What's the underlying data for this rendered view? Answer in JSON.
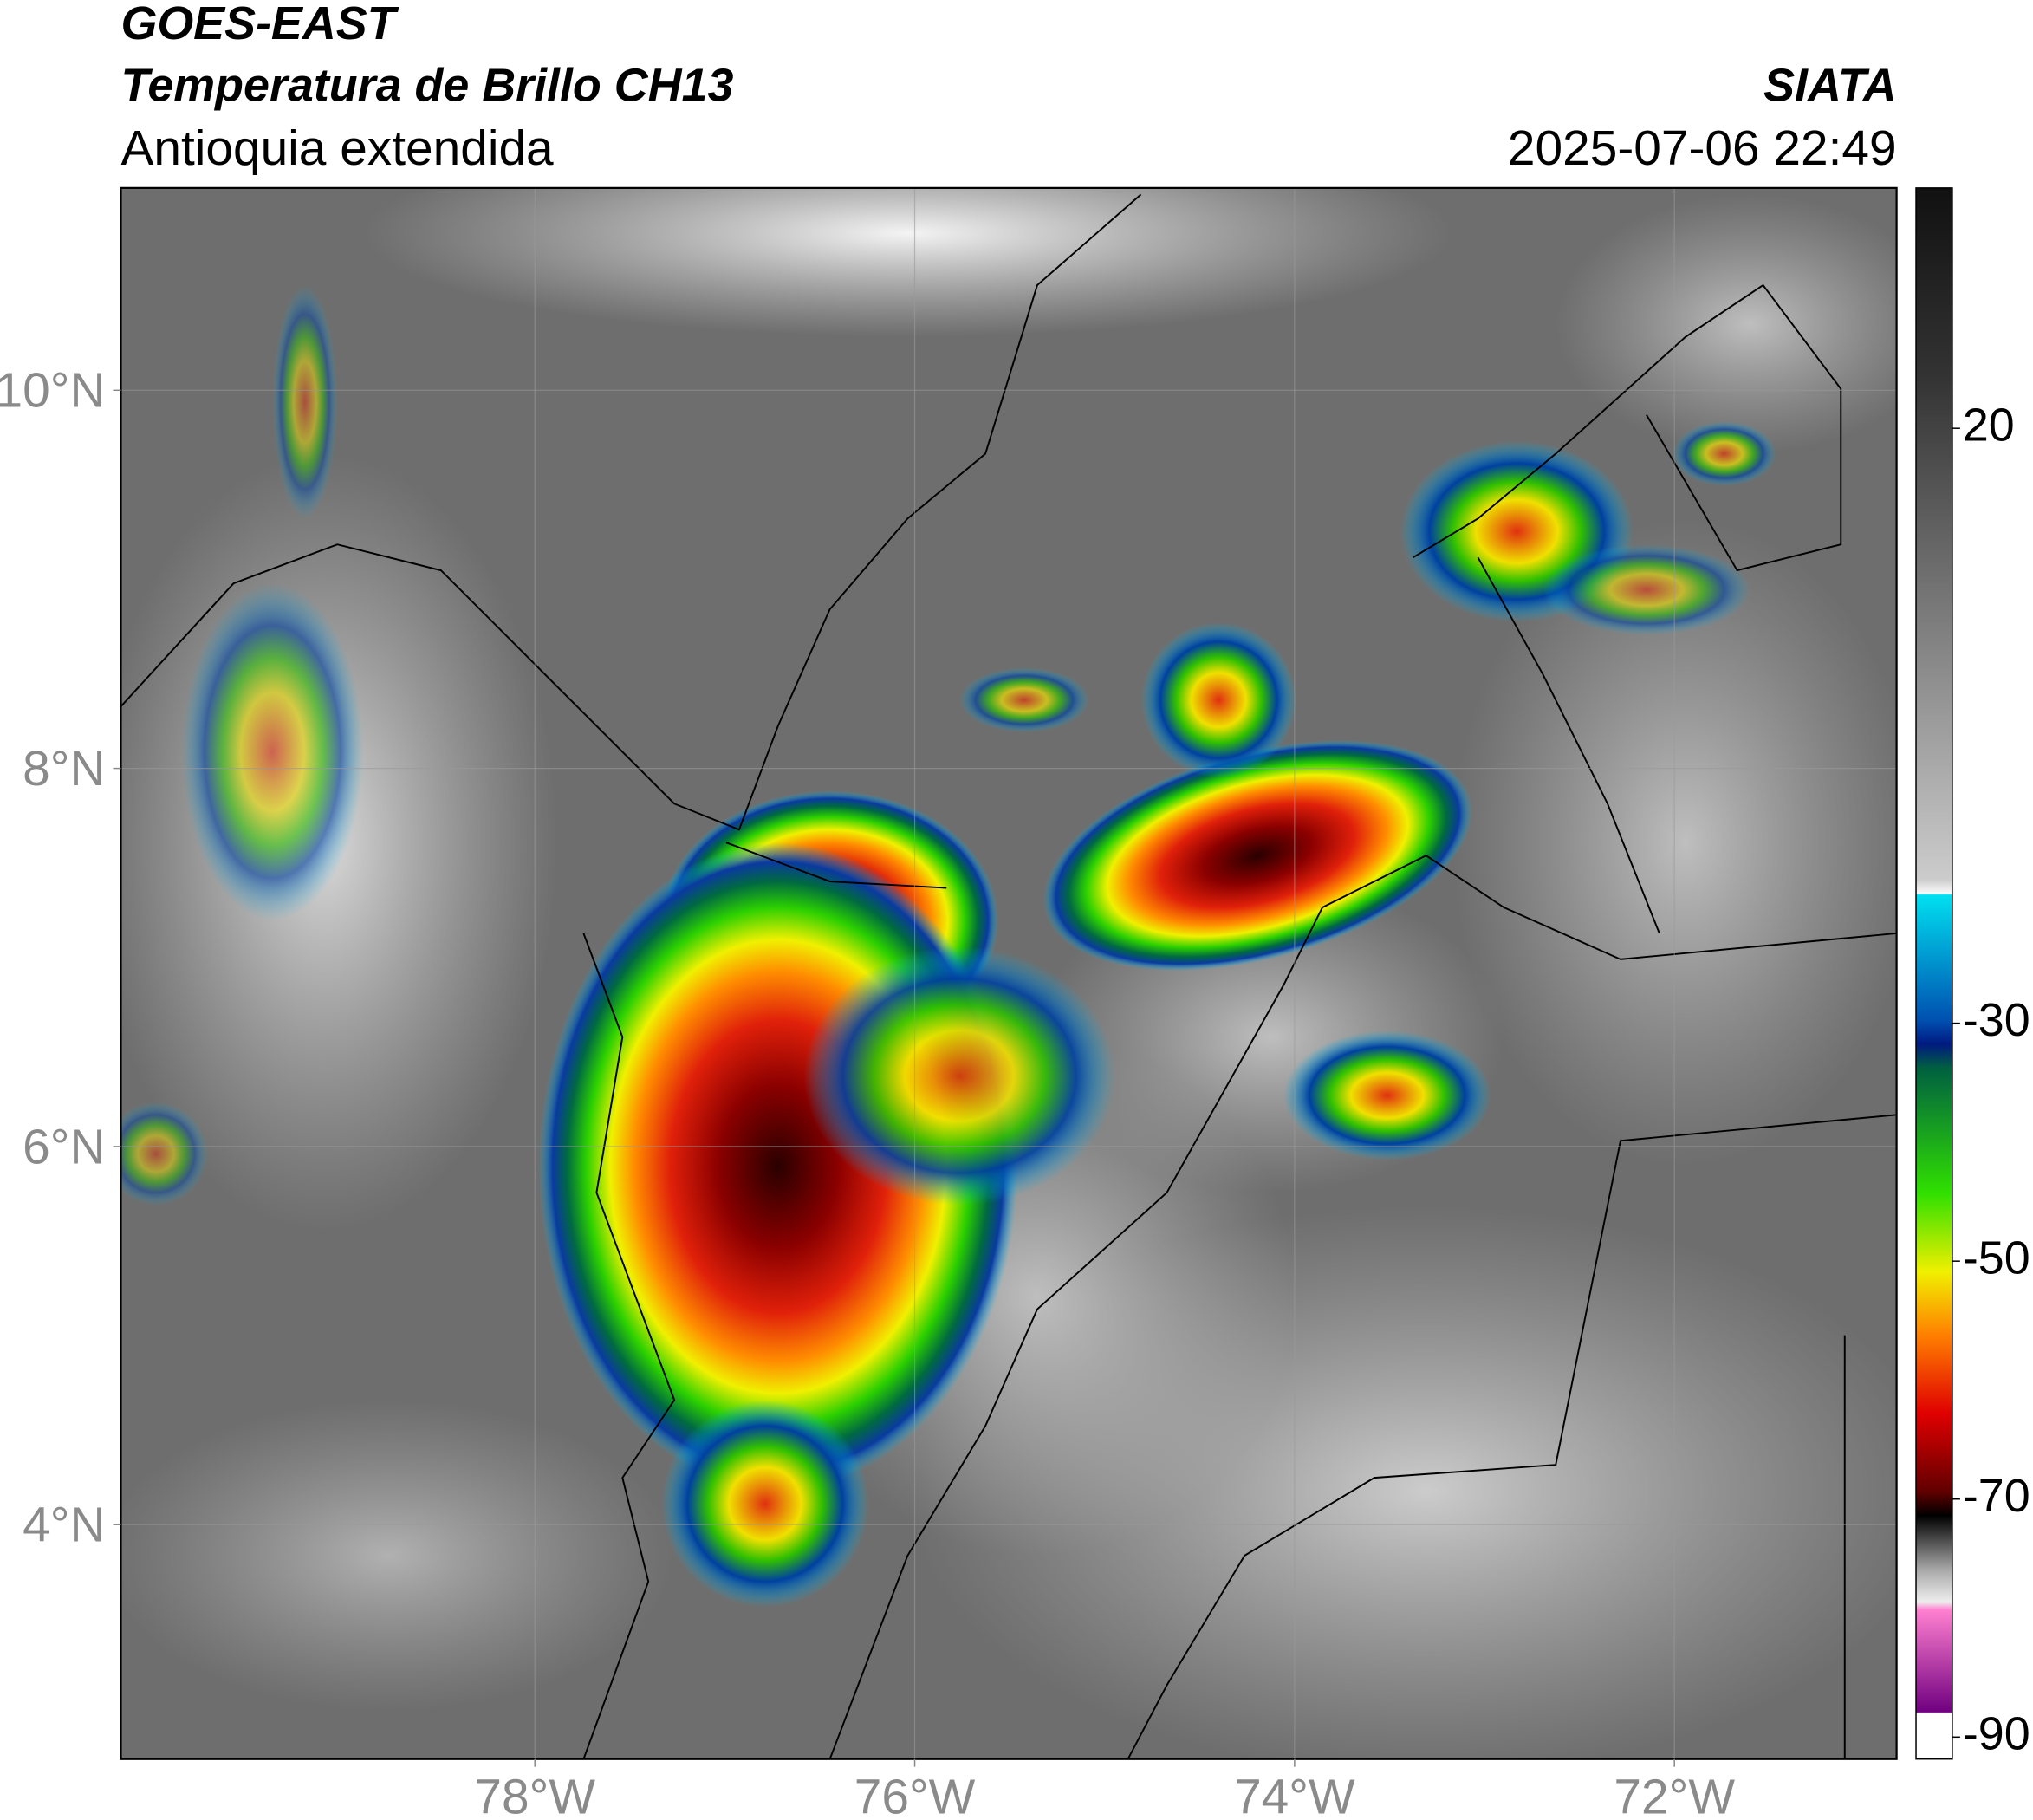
{
  "header": {
    "title": "GOES-EAST",
    "subtitle": "Temperatura de Brillo CH13",
    "region": "Antioquia extendida",
    "source": "SIATA",
    "timestamp": "2025-07-06 22:49"
  },
  "map": {
    "lon_range": [
      -80.18,
      -70.83
    ],
    "lat_range": [
      2.76,
      11.07
    ],
    "lon_ticks": [
      {
        "value": -78,
        "label": "78°W"
      },
      {
        "value": -76,
        "label": "76°W"
      },
      {
        "value": -74,
        "label": "74°W"
      },
      {
        "value": -72,
        "label": "72°W"
      }
    ],
    "lat_ticks": [
      {
        "value": 10,
        "label": "10°N"
      },
      {
        "value": 8,
        "label": "8°N"
      },
      {
        "value": 6,
        "label": "6°N"
      },
      {
        "value": 4,
        "label": "4°N"
      }
    ],
    "grid": true
  },
  "colorbar": {
    "range": [
      -91.85,
      40.2
    ],
    "ticks": [
      20,
      -30,
      -50,
      -70,
      -90
    ]
  }
}
